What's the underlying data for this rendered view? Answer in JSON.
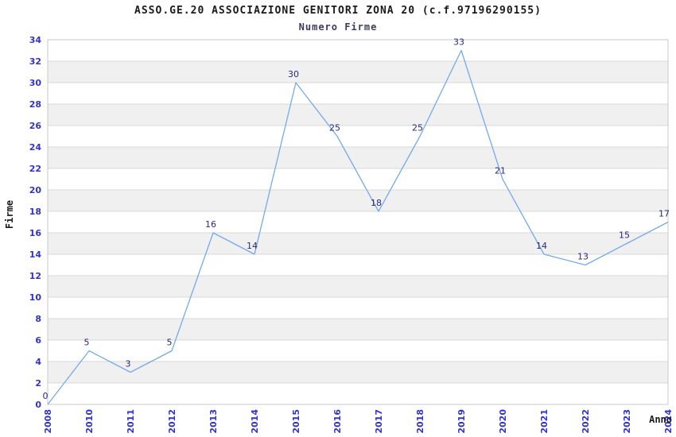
{
  "header": {
    "title": "ASSO.GE.20 ASSOCIAZIONE GENITORI ZONA 20 (c.f.97196290155)",
    "subtitle": "Numero Firme"
  },
  "chart_data": {
    "type": "line",
    "title": "ASSO.GE.20 ASSOCIAZIONE GENITORI ZONA 20 (c.f.97196290155)",
    "subtitle": "Numero Firme",
    "categories": [
      "2008",
      "2010",
      "2011",
      "2012",
      "2013",
      "2014",
      "2015",
      "2016",
      "2017",
      "2018",
      "2019",
      "2020",
      "2021",
      "2022",
      "2023",
      "2024"
    ],
    "values": [
      0,
      5,
      3,
      5,
      16,
      14,
      30,
      25,
      18,
      25,
      33,
      21,
      14,
      13,
      15,
      17
    ],
    "xlabel": "Anno",
    "ylabel": "Firme",
    "ylim": [
      0,
      34
    ],
    "ytick_step": 2,
    "grid": true,
    "legend": "none",
    "data_labels": true,
    "colors": {
      "line": "#74abe8",
      "tick_label": "#3232cc",
      "data_label": "#28287e",
      "gridline": "#d8d8d8",
      "band_even": "#ffffff",
      "band_odd": "#f0f0f0",
      "border": "#c8c8c8",
      "title": "#1a1a1a",
      "subtitle": "#3b3b60"
    }
  }
}
